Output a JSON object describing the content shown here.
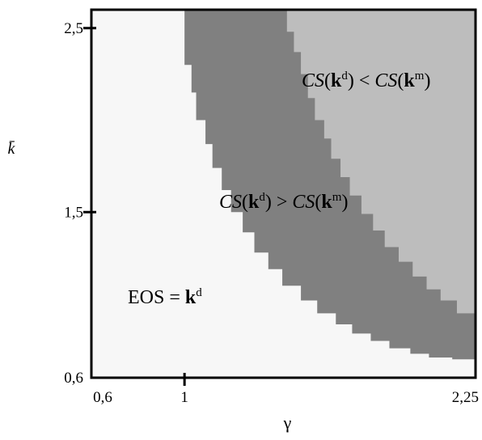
{
  "chart_data": {
    "type": "heatmap",
    "title": "",
    "xlabel": "γ",
    "ylabel": "k̄",
    "xlim": [
      0.6,
      2.25
    ],
    "ylim": [
      0.6,
      2.6
    ],
    "xticks": [
      {
        "value": 0.6,
        "label": "0,6"
      },
      {
        "value": 1,
        "label": "1"
      },
      {
        "value": 2.25,
        "label": "2,25"
      }
    ],
    "yticks": [
      {
        "value": 0.6,
        "label": "0,6"
      },
      {
        "value": 1.5,
        "label": "1,5"
      },
      {
        "value": 2.5,
        "label": "2,5"
      }
    ],
    "grid": false,
    "colors": {
      "eos": "#f7f7f7",
      "cs_greater": "#808080",
      "cs_less": "#bdbdbd",
      "frame": "#000000"
    },
    "regions": [
      {
        "name": "eos",
        "label_main": "EOS = ",
        "label_bold": "k",
        "label_sup": "d",
        "anchor": {
          "x": 0.75,
          "y": 0.9
        }
      },
      {
        "name": "cs_greater",
        "label_cs1": "CS",
        "label_open": "(",
        "label_bold1": "k",
        "label_sup1": "d",
        "label_mid": ") > ",
        "label_cs2": "CS",
        "label_open2": "(",
        "label_bold2": "k",
        "label_sup2": "m",
        "label_close": ")",
        "anchor": {
          "x": 1.25,
          "y": 1.5
        }
      },
      {
        "name": "cs_less",
        "label_cs1": "CS",
        "label_open": "(",
        "label_bold1": "k",
        "label_sup1": "d",
        "label_mid": ") < ",
        "label_cs2": "CS",
        "label_open2": "(",
        "label_bold2": "k",
        "label_sup2": "m",
        "label_close": ")",
        "anchor": {
          "x": 1.6,
          "y": 2.2
        }
      }
    ],
    "boundaries": {
      "eos_to_cs_greater": [
        [
          1.0,
          2.6
        ],
        [
          1.0,
          2.45
        ],
        [
          1.03,
          2.3
        ],
        [
          1.05,
          2.15
        ],
        [
          1.09,
          2.0
        ],
        [
          1.12,
          1.87
        ],
        [
          1.16,
          1.74
        ],
        [
          1.2,
          1.62
        ],
        [
          1.25,
          1.5
        ],
        [
          1.3,
          1.39
        ],
        [
          1.36,
          1.28
        ],
        [
          1.42,
          1.19
        ],
        [
          1.5,
          1.1
        ],
        [
          1.57,
          1.02
        ],
        [
          1.65,
          0.95
        ],
        [
          1.72,
          0.89
        ],
        [
          1.8,
          0.84
        ],
        [
          1.88,
          0.8
        ],
        [
          1.97,
          0.76
        ],
        [
          2.05,
          0.73
        ],
        [
          2.15,
          0.71
        ],
        [
          2.25,
          0.7
        ]
      ],
      "cs_greater_to_cs_less": [
        [
          1.44,
          2.6
        ],
        [
          1.47,
          2.48
        ],
        [
          1.5,
          2.37
        ],
        [
          1.53,
          2.25
        ],
        [
          1.56,
          2.12
        ],
        [
          1.6,
          2.0
        ],
        [
          1.63,
          1.9
        ],
        [
          1.67,
          1.79
        ],
        [
          1.71,
          1.69
        ],
        [
          1.76,
          1.59
        ],
        [
          1.81,
          1.49
        ],
        [
          1.86,
          1.4
        ],
        [
          1.92,
          1.31
        ],
        [
          1.98,
          1.23
        ],
        [
          2.04,
          1.15
        ],
        [
          2.1,
          1.08
        ],
        [
          2.17,
          1.02
        ],
        [
          2.25,
          0.95
        ]
      ]
    }
  }
}
